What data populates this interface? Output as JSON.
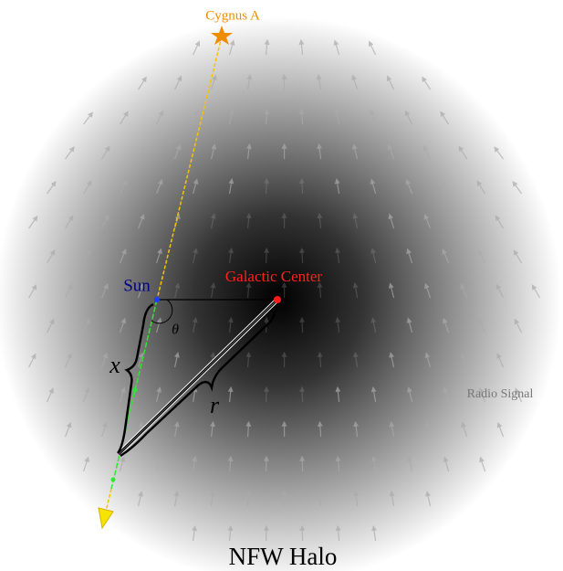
{
  "labels": {
    "source": "Cygnus A",
    "sun": "Sun",
    "center": "Galactic Center",
    "angle": "θ",
    "distance": "x",
    "radius": "r",
    "signal": "Radio Signal",
    "title": "NFW Halo"
  }
}
